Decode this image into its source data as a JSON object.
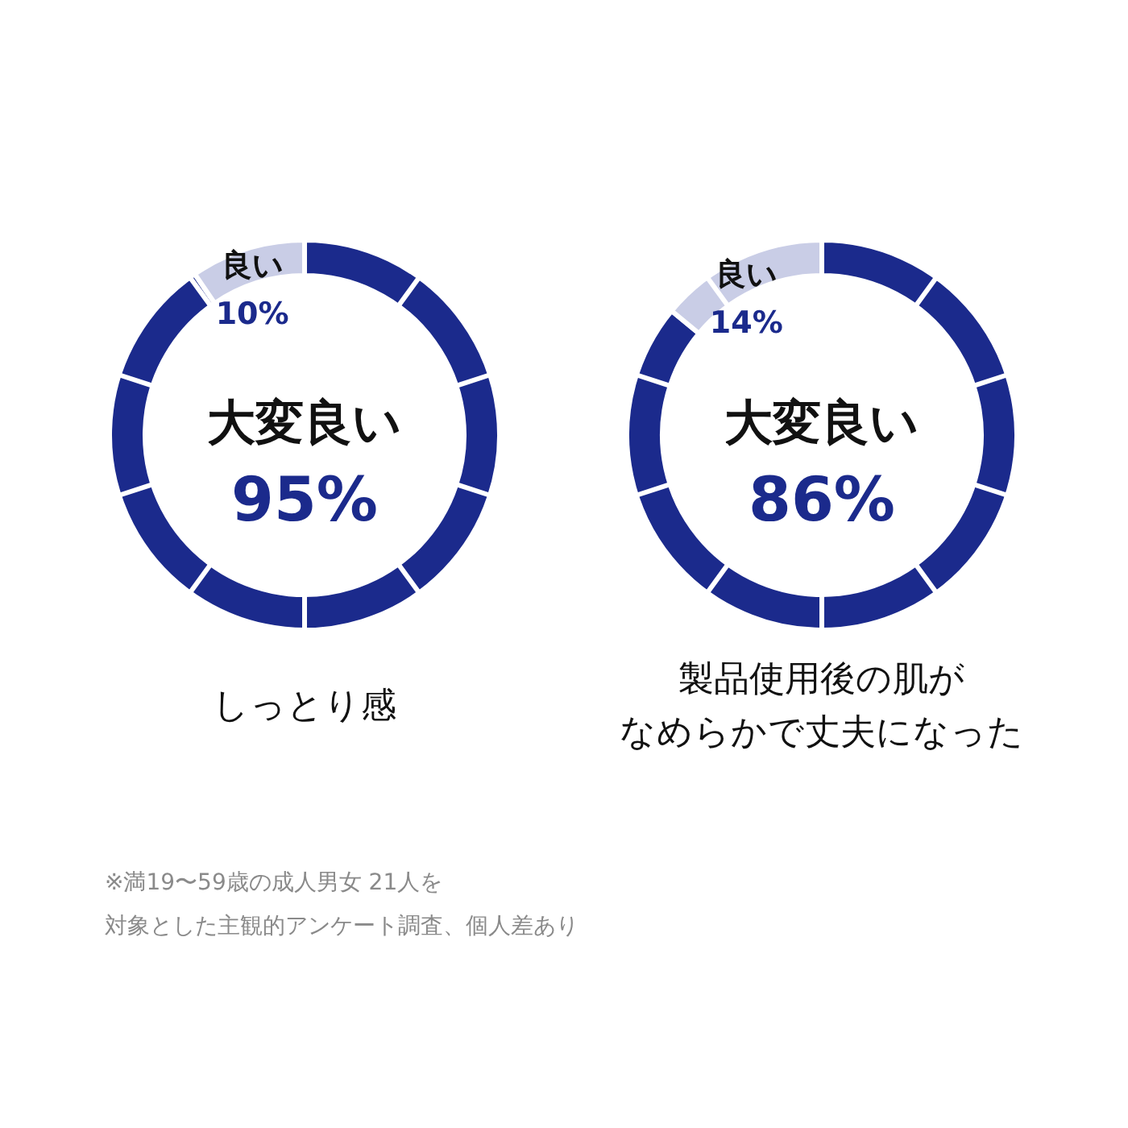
{
  "chart_data": [
    {
      "type": "donut",
      "title": "しっとり感",
      "categories": [
        "大変良い",
        "良い"
      ],
      "values": [
        95,
        10
      ],
      "colors": [
        "#1b2a8c",
        "#c9cde6"
      ],
      "value_labels": [
        "95%",
        "10%"
      ],
      "annotations": [
        "※満19〜59歳の成人男女 21人を対象とした主観的アンケート調査、個人差あり"
      ]
    },
    {
      "type": "donut",
      "title": "製品使用後の肌がなめらかで丈夫になった",
      "categories": [
        "大変良い",
        "良い"
      ],
      "values": [
        86,
        14
      ],
      "colors": [
        "#1b2a8c",
        "#c9cde6"
      ],
      "value_labels": [
        "86%",
        "14%"
      ]
    }
  ]
}
